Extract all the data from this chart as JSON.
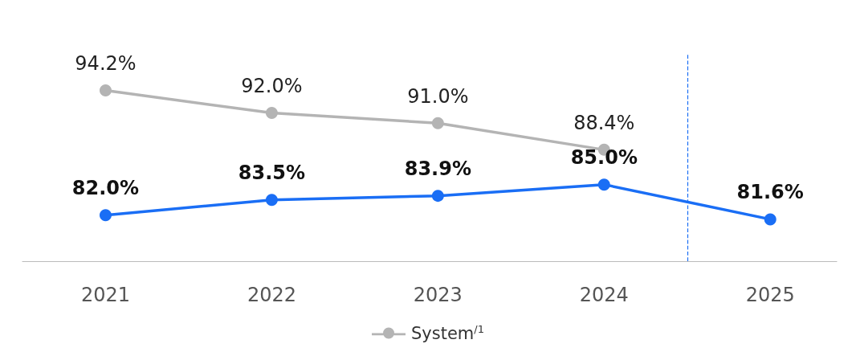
{
  "chart_data": {
    "type": "line",
    "x": [
      2021,
      2022,
      2023,
      2024,
      2025
    ],
    "xlim": [
      2020.5,
      2025.4
    ],
    "xticks": [
      2021,
      2022,
      2023,
      2024,
      2025
    ],
    "series": [
      {
        "name": "System$^{/1}$",
        "color": "#b4b4b4",
        "values": [
          94.2,
          92.0,
          91.0,
          88.4,
          null
        ],
        "value_labels": [
          "94.2%",
          "92.0%",
          "91.0%",
          "88.4%",
          null
        ]
      },
      {
        "color": "#1a6ef5",
        "values": [
          82.0,
          83.5,
          83.9,
          85.0,
          81.6
        ],
        "value_labels": [
          "82.0%",
          "83.5%",
          "83.9%",
          "85.0%",
          "81.6%"
        ]
      }
    ],
    "ref_lines": [
      {
        "axis": "x",
        "value": 2024.5,
        "color": "#1a6ef5",
        "line_style": "dashed"
      }
    ],
    "legend": "bottom",
    "grid": false,
    "marker": "circle",
    "line_style": "solid",
    "tick_labels": "x"
  }
}
